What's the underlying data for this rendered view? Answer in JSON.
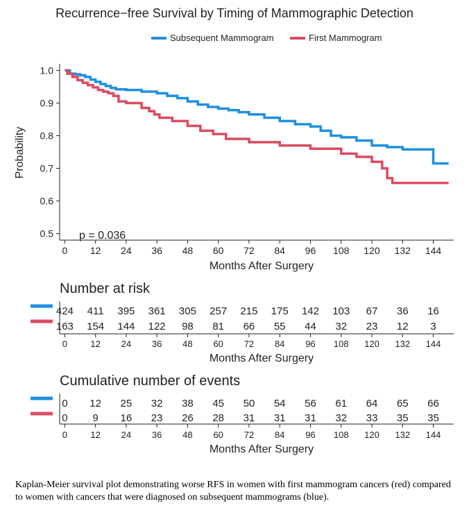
{
  "chart_data": {
    "type": "line",
    "title": "Recurrence−free Survival by Timing of Mammographic Detection",
    "xlabel": "Months After Surgery",
    "ylabel": "Probability",
    "xlim": [
      -2,
      152
    ],
    "ylim": [
      0.48,
      1.02
    ],
    "x_ticks": [
      "0",
      "12",
      "24",
      "36",
      "48",
      "60",
      "72",
      "84",
      "96",
      "108",
      "120",
      "132",
      "144"
    ],
    "y_ticks": [
      "0.5",
      "0.6",
      "0.7",
      "0.8",
      "0.9",
      "1.0"
    ],
    "grid": false,
    "legend": "top",
    "annotation": "p = 0.036",
    "series": [
      {
        "name": "Subsequent Mammogram",
        "color": "#1f8fe0",
        "x": [
          0,
          2,
          4,
          6,
          8,
          10,
          12,
          14,
          16,
          18,
          20,
          24,
          30,
          36,
          40,
          44,
          48,
          52,
          56,
          60,
          64,
          68,
          72,
          78,
          84,
          90,
          96,
          100,
          104,
          108,
          114,
          120,
          126,
          132,
          138,
          142,
          144,
          150
        ],
        "y": [
          1.0,
          0.99,
          0.988,
          0.985,
          0.98,
          0.972,
          0.965,
          0.958,
          0.952,
          0.946,
          0.942,
          0.94,
          0.935,
          0.93,
          0.922,
          0.915,
          0.905,
          0.895,
          0.888,
          0.883,
          0.878,
          0.872,
          0.865,
          0.855,
          0.845,
          0.835,
          0.828,
          0.815,
          0.8,
          0.795,
          0.785,
          0.77,
          0.765,
          0.758,
          0.758,
          0.758,
          0.715,
          0.715
        ]
      },
      {
        "name": "First Mammogram",
        "color": "#d94b62",
        "x": [
          0,
          1,
          3,
          5,
          7,
          9,
          11,
          13,
          15,
          17,
          19,
          21,
          24,
          30,
          33,
          35,
          37,
          42,
          48,
          53,
          58,
          63,
          72,
          78,
          84,
          90,
          96,
          104,
          108,
          114,
          120,
          124,
          126,
          128,
          132,
          138,
          144,
          150
        ],
        "y": [
          1.0,
          0.99,
          0.98,
          0.97,
          0.962,
          0.955,
          0.948,
          0.94,
          0.935,
          0.93,
          0.922,
          0.905,
          0.9,
          0.885,
          0.875,
          0.865,
          0.855,
          0.845,
          0.83,
          0.815,
          0.805,
          0.79,
          0.78,
          0.78,
          0.77,
          0.77,
          0.76,
          0.76,
          0.745,
          0.735,
          0.72,
          0.7,
          0.67,
          0.655,
          0.655,
          0.655,
          0.655,
          0.655
        ]
      }
    ]
  },
  "risk_table": {
    "title": "Number at risk",
    "xlabel": "Months After Surgery",
    "rows": [
      {
        "color": "#1f8fe0",
        "values": [
          "424",
          "411",
          "395",
          "361",
          "305",
          "257",
          "215",
          "175",
          "142",
          "103",
          "67",
          "36",
          "16"
        ]
      },
      {
        "color": "#d94b62",
        "values": [
          "163",
          "154",
          "144",
          "122",
          "98",
          "81",
          "66",
          "55",
          "44",
          "32",
          "23",
          "12",
          "3"
        ]
      }
    ]
  },
  "events_table": {
    "title": "Cumulative number of events",
    "xlabel": "Months After Surgery",
    "rows": [
      {
        "color": "#1f8fe0",
        "values": [
          "0",
          "12",
          "25",
          "32",
          "38",
          "45",
          "50",
          "54",
          "56",
          "61",
          "64",
          "65",
          "66"
        ]
      },
      {
        "color": "#d94b62",
        "values": [
          "0",
          "9",
          "16",
          "23",
          "26",
          "28",
          "31",
          "31",
          "31",
          "32",
          "33",
          "35",
          "35"
        ]
      }
    ]
  },
  "caption": "Kaplan-Meier survival plot demonstrating worse RFS in women with first mammogram cancers (red) compared to women with cancers that were diagnosed on subsequent mammograms (blue)."
}
